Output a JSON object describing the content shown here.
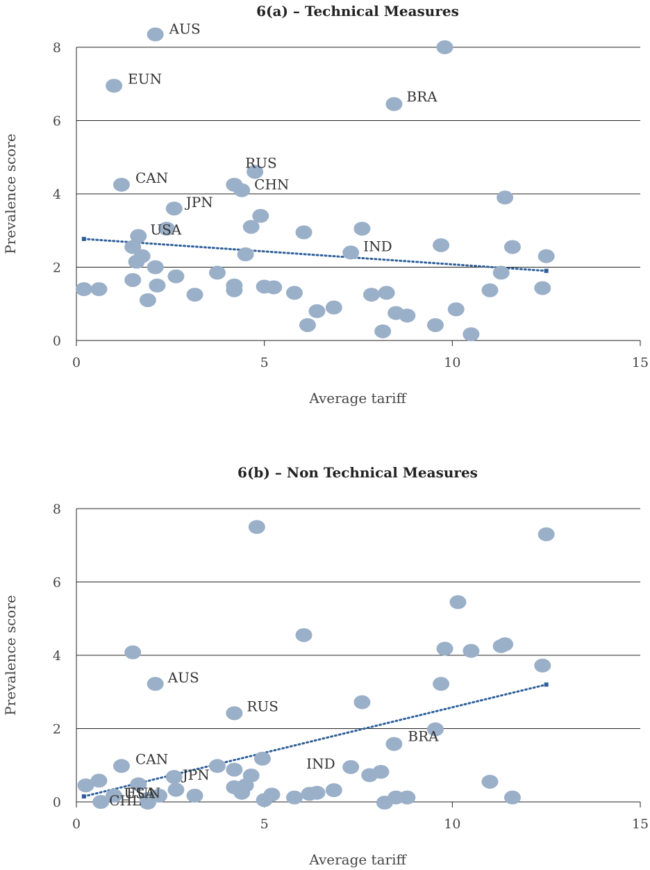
{
  "colors": {
    "point": "#9aafc8",
    "trend": "#2e5f99",
    "grid": "#222222"
  },
  "chart_data": [
    {
      "type": "scatter",
      "title": "6(a) – Technical Measures",
      "xlabel": "Average tariff",
      "ylabel": "Prevalence score",
      "xlim": [
        0,
        15
      ],
      "ylim": [
        0,
        8
      ],
      "xticks": [
        0,
        5,
        10,
        15
      ],
      "yticks": [
        0,
        2,
        4,
        6,
        8
      ],
      "grid": "horizontal",
      "points": [
        {
          "x": 2.1,
          "y": 8.35,
          "label": "AUS"
        },
        {
          "x": 9.8,
          "y": 8.0
        },
        {
          "x": 1.0,
          "y": 6.95,
          "label": "EUN"
        },
        {
          "x": 8.45,
          "y": 6.45,
          "label": "BRA"
        },
        {
          "x": 4.75,
          "y": 4.6,
          "label": "RUS"
        },
        {
          "x": 1.2,
          "y": 4.25,
          "label": "CAN"
        },
        {
          "x": 4.2,
          "y": 4.25
        },
        {
          "x": 4.4,
          "y": 4.1,
          "label": "CHN"
        },
        {
          "x": 11.4,
          "y": 3.9
        },
        {
          "x": 2.6,
          "y": 3.6,
          "label": "JPN"
        },
        {
          "x": 4.9,
          "y": 3.4
        },
        {
          "x": 4.65,
          "y": 3.1
        },
        {
          "x": 2.4,
          "y": 3.05
        },
        {
          "x": 7.6,
          "y": 3.05
        },
        {
          "x": 6.05,
          "y": 2.95
        },
        {
          "x": 1.65,
          "y": 2.85,
          "label": "USA"
        },
        {
          "x": 9.7,
          "y": 2.6
        },
        {
          "x": 1.5,
          "y": 2.55
        },
        {
          "x": 11.6,
          "y": 2.55
        },
        {
          "x": 7.3,
          "y": 2.4,
          "label": "IND"
        },
        {
          "x": 4.5,
          "y": 2.35
        },
        {
          "x": 1.75,
          "y": 2.3
        },
        {
          "x": 12.5,
          "y": 2.3
        },
        {
          "x": 1.6,
          "y": 2.15
        },
        {
          "x": 2.1,
          "y": 2.0
        },
        {
          "x": 11.3,
          "y": 1.85
        },
        {
          "x": 3.75,
          "y": 1.85
        },
        {
          "x": 2.65,
          "y": 1.75
        },
        {
          "x": 1.5,
          "y": 1.65
        },
        {
          "x": 2.15,
          "y": 1.5
        },
        {
          "x": 4.2,
          "y": 1.5
        },
        {
          "x": 5.0,
          "y": 1.47
        },
        {
          "x": 5.25,
          "y": 1.45
        },
        {
          "x": 0.2,
          "y": 1.4
        },
        {
          "x": 0.6,
          "y": 1.4
        },
        {
          "x": 4.2,
          "y": 1.37
        },
        {
          "x": 11.0,
          "y": 1.37
        },
        {
          "x": 12.4,
          "y": 1.43
        },
        {
          "x": 5.8,
          "y": 1.3
        },
        {
          "x": 8.25,
          "y": 1.3
        },
        {
          "x": 7.85,
          "y": 1.25
        },
        {
          "x": 3.15,
          "y": 1.25
        },
        {
          "x": 1.9,
          "y": 1.1
        },
        {
          "x": 6.85,
          "y": 0.9
        },
        {
          "x": 10.1,
          "y": 0.85
        },
        {
          "x": 6.4,
          "y": 0.8
        },
        {
          "x": 8.5,
          "y": 0.75
        },
        {
          "x": 8.8,
          "y": 0.68
        },
        {
          "x": 6.15,
          "y": 0.42
        },
        {
          "x": 9.55,
          "y": 0.42
        },
        {
          "x": 8.15,
          "y": 0.25
        },
        {
          "x": 10.5,
          "y": 0.17
        }
      ],
      "trendline": {
        "x": [
          0.2,
          12.5
        ],
        "y": [
          2.77,
          1.9
        ]
      }
    },
    {
      "type": "scatter",
      "title": "6(b) – Non Technical Measures",
      "xlabel": "Average tariff",
      "ylabel": "Prevalence score",
      "xlim": [
        0,
        15
      ],
      "ylim": [
        0,
        8
      ],
      "xticks": [
        0,
        5,
        10,
        15
      ],
      "yticks": [
        0,
        2,
        4,
        6,
        8
      ],
      "grid": "horizontal",
      "points": [
        {
          "x": 4.8,
          "y": 7.5
        },
        {
          "x": 12.5,
          "y": 7.3
        },
        {
          "x": 10.15,
          "y": 5.45
        },
        {
          "x": 6.05,
          "y": 4.55
        },
        {
          "x": 11.4,
          "y": 4.3
        },
        {
          "x": 11.3,
          "y": 4.25
        },
        {
          "x": 9.8,
          "y": 4.18
        },
        {
          "x": 10.5,
          "y": 4.12
        },
        {
          "x": 1.5,
          "y": 4.08
        },
        {
          "x": 12.4,
          "y": 3.72
        },
        {
          "x": 2.1,
          "y": 3.22,
          "label": "AUS"
        },
        {
          "x": 9.7,
          "y": 3.22
        },
        {
          "x": 7.6,
          "y": 2.72
        },
        {
          "x": 4.2,
          "y": 2.42,
          "label": "RUS"
        },
        {
          "x": 9.55,
          "y": 1.98
        },
        {
          "x": 8.45,
          "y": 1.58,
          "label": "BRA"
        },
        {
          "x": 4.95,
          "y": 1.18
        },
        {
          "x": 1.2,
          "y": 0.98,
          "label": "CAN"
        },
        {
          "x": 3.75,
          "y": 0.98
        },
        {
          "x": 7.3,
          "y": 0.95,
          "label": "IND"
        },
        {
          "x": 4.2,
          "y": 0.88
        },
        {
          "x": 8.1,
          "y": 0.82
        },
        {
          "x": 7.8,
          "y": 0.73
        },
        {
          "x": 4.65,
          "y": 0.72
        },
        {
          "x": 2.6,
          "y": 0.68,
          "label": "JPN"
        },
        {
          "x": 11.0,
          "y": 0.55
        },
        {
          "x": 0.6,
          "y": 0.58
        },
        {
          "x": 1.65,
          "y": 0.48,
          "label": "USA"
        },
        {
          "x": 0.25,
          "y": 0.45
        },
        {
          "x": 4.5,
          "y": 0.45
        },
        {
          "x": 4.2,
          "y": 0.4
        },
        {
          "x": 2.65,
          "y": 0.33
        },
        {
          "x": 6.85,
          "y": 0.32
        },
        {
          "x": 4.4,
          "y": 0.25
        },
        {
          "x": 6.4,
          "y": 0.25
        },
        {
          "x": 6.2,
          "y": 0.22
        },
        {
          "x": 5.2,
          "y": 0.2
        },
        {
          "x": 3.15,
          "y": 0.17
        },
        {
          "x": 2.2,
          "y": 0.17
        },
        {
          "x": 1.0,
          "y": 0.17,
          "label": "EUN"
        },
        {
          "x": 5.8,
          "y": 0.12
        },
        {
          "x": 8.5,
          "y": 0.12
        },
        {
          "x": 8.8,
          "y": 0.12
        },
        {
          "x": 11.6,
          "y": 0.12
        },
        {
          "x": 1.9,
          "y": 0.08
        },
        {
          "x": 5.0,
          "y": 0.05
        },
        {
          "x": 0.65,
          "y": 0.0,
          "label": "CHL"
        },
        {
          "x": 1.9,
          "y": -0.02
        },
        {
          "x": 8.2,
          "y": -0.02
        }
      ],
      "trendline": {
        "x": [
          0.2,
          12.5
        ],
        "y": [
          0.15,
          3.2
        ]
      }
    }
  ]
}
